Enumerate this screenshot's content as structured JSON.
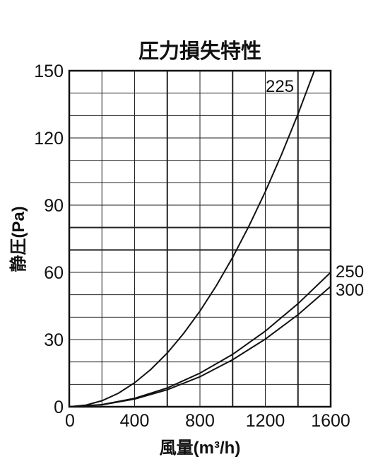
{
  "chart_data": {
    "type": "line",
    "title": "圧力損失特性",
    "xlabel": "風量(m³/h)",
    "ylabel": "静圧(Pa)",
    "xlim": [
      0,
      1600
    ],
    "ylim": [
      0,
      150
    ],
    "x_ticks": [
      "0",
      "400",
      "800",
      "1200",
      "1600"
    ],
    "y_ticks": [
      "0",
      "30",
      "60",
      "90",
      "120",
      "150"
    ],
    "x_minor_step": 200,
    "y_minor_step": 10,
    "x_major_lines": [
      600,
      1000,
      1400
    ],
    "y_major_lines": [
      70,
      80
    ],
    "grid": true,
    "series": [
      {
        "name": "225",
        "x": [
          0,
          100,
          200,
          300,
          400,
          500,
          600,
          700,
          800,
          900,
          1000,
          1100,
          1200,
          1300,
          1400,
          1500
        ],
        "y": [
          0,
          0.7,
          2.7,
          6.0,
          10.7,
          16.7,
          24,
          32.7,
          42.7,
          54,
          66.7,
          80.7,
          96,
          112.7,
          130.7,
          150
        ]
      },
      {
        "name": "250",
        "x": [
          0,
          200,
          400,
          600,
          800,
          1000,
          1200,
          1400,
          1600
        ],
        "y": [
          0,
          0.94,
          3.75,
          8.4,
          15,
          23.4,
          33.75,
          46,
          60
        ]
      },
      {
        "name": "300",
        "x": [
          0,
          200,
          400,
          600,
          800,
          1000,
          1200,
          1400,
          1600
        ],
        "y": [
          0,
          0.84,
          3.4,
          7.6,
          13.4,
          21,
          30.2,
          41.1,
          53.7
        ]
      }
    ]
  }
}
